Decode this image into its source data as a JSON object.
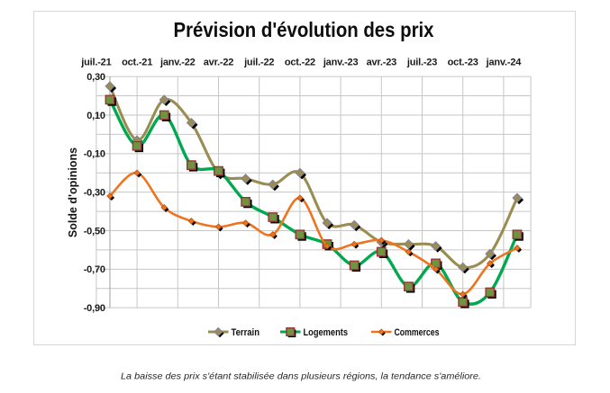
{
  "chart": {
    "title": "Prévision d'évolution des prix",
    "y_axis_title": "Solde d'opinions",
    "colors": {
      "terrain": "#998D53",
      "logements": "#00A94F",
      "commerces": "#EE7420",
      "gridline": "#c6c6c6",
      "axis_line": "#a6a6a6",
      "frame_border": "#d6d6d6",
      "marker_shadow": "#000000",
      "terrain_marker_border": "#83819E",
      "logements_marker_fill": "#6F9340",
      "logements_marker_border": "#963634",
      "commerces_marker_border": "#B5530A"
    }
  },
  "chart_data": {
    "type": "line",
    "title": "Prévision d'évolution des prix",
    "xlabel": "",
    "ylabel": "Solde d'opinions",
    "x_tick_labels": [
      "juil.-21",
      "oct.-21",
      "janv.-22",
      "avr.-22",
      "juil.-22",
      "oct.-22",
      "janv.-23",
      "avr.-23",
      "juil.-23",
      "oct.-23",
      "janv.-24"
    ],
    "y_tick_labels": [
      "0,30",
      "0,10",
      "-0,10",
      "-0,30",
      "-0,50",
      "-0,70",
      "-0,90"
    ],
    "ylim": [
      -0.9,
      0.3
    ],
    "y_gridline_step": 0.1,
    "y_label_step": 0.2,
    "x_tick_month_positions": [
      0,
      3,
      6,
      9,
      12,
      15,
      18,
      21,
      24,
      27,
      30
    ],
    "x_point_month_positions": [
      1,
      3,
      5,
      7,
      9,
      11,
      13,
      15,
      17,
      19,
      21,
      23,
      25,
      27,
      29,
      31
    ],
    "grid": true,
    "legend_position": "bottom",
    "smoothed_lines": true,
    "series": [
      {
        "name": "Terrain",
        "marker": "diamond",
        "values": [
          0.25,
          -0.03,
          0.18,
          0.06,
          -0.2,
          -0.23,
          -0.26,
          -0.2,
          -0.46,
          -0.47,
          -0.56,
          -0.57,
          -0.58,
          -0.69,
          -0.62,
          -0.33
        ]
      },
      {
        "name": "Logements",
        "marker": "square",
        "values": [
          0.18,
          -0.06,
          0.1,
          -0.16,
          -0.19,
          -0.35,
          -0.43,
          -0.52,
          -0.57,
          -0.68,
          -0.61,
          -0.79,
          -0.67,
          -0.87,
          -0.82,
          -0.52
        ]
      },
      {
        "name": "Commerces",
        "marker": "diamond-small",
        "values": [
          -0.32,
          -0.2,
          -0.38,
          -0.45,
          -0.48,
          -0.46,
          -0.52,
          -0.33,
          -0.58,
          -0.57,
          -0.55,
          -0.61,
          -0.7,
          -0.83,
          -0.67,
          -0.59
        ]
      }
    ]
  },
  "caption": "La baisse des prix s'étant stabilisée dans plusieurs régions, la tendance s'améliore."
}
